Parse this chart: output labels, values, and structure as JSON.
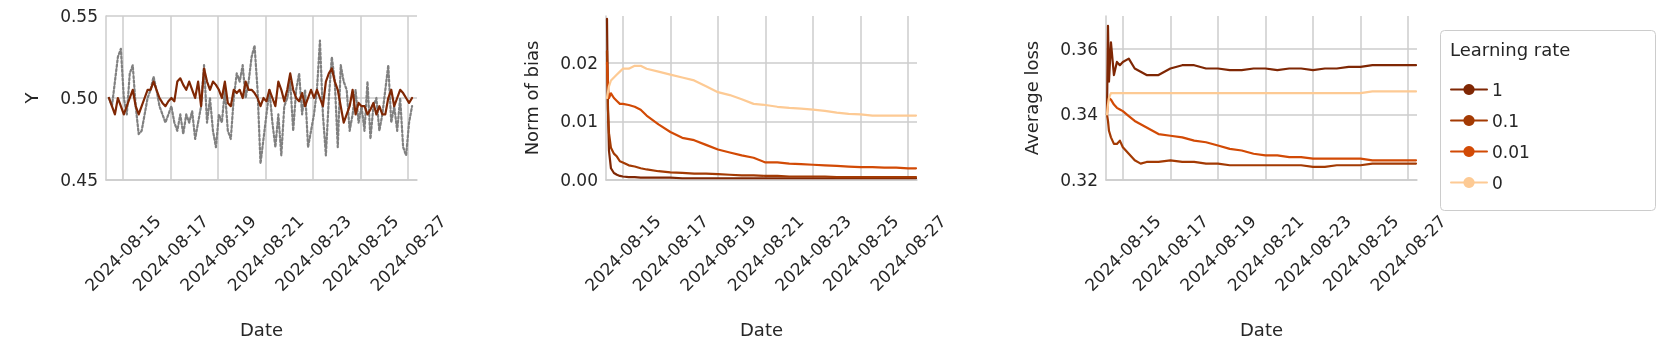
{
  "chart_data": [
    {
      "type": "line",
      "xlabel": "Date",
      "ylabel": "Y",
      "grid": true,
      "x": [
        "2024-08-14T10:00",
        "2024-08-14T13:00",
        "2024-08-14T16:00",
        "2024-08-14T19:00",
        "2024-08-14T22:00",
        "2024-08-15T01:00",
        "2024-08-15T04:00",
        "2024-08-15T07:00",
        "2024-08-15T10:00",
        "2024-08-15T13:00",
        "2024-08-15T16:00",
        "2024-08-15T19:00",
        "2024-08-15T22:00",
        "2024-08-16T01:00",
        "2024-08-16T04:00",
        "2024-08-16T07:00",
        "2024-08-16T10:00",
        "2024-08-16T13:00",
        "2024-08-16T16:00",
        "2024-08-16T19:00",
        "2024-08-16T22:00",
        "2024-08-17T01:00",
        "2024-08-17T04:00",
        "2024-08-17T07:00",
        "2024-08-17T10:00",
        "2024-08-17T13:00",
        "2024-08-17T16:00",
        "2024-08-17T19:00",
        "2024-08-17T22:00",
        "2024-08-18T01:00",
        "2024-08-18T04:00",
        "2024-08-18T07:00",
        "2024-08-18T10:00",
        "2024-08-18T13:00",
        "2024-08-18T16:00",
        "2024-08-18T19:00",
        "2024-08-18T22:00",
        "2024-08-19T01:00",
        "2024-08-19T04:00",
        "2024-08-19T07:00",
        "2024-08-19T10:00",
        "2024-08-19T13:00",
        "2024-08-19T16:00",
        "2024-08-19T19:00",
        "2024-08-19T22:00",
        "2024-08-20T01:00",
        "2024-08-20T04:00",
        "2024-08-20T07:00",
        "2024-08-20T10:00",
        "2024-08-20T13:00",
        "2024-08-20T16:00",
        "2024-08-20T19:00",
        "2024-08-20T22:00",
        "2024-08-21T01:00",
        "2024-08-21T04:00",
        "2024-08-21T07:00",
        "2024-08-21T10:00",
        "2024-08-21T13:00",
        "2024-08-21T16:00",
        "2024-08-21T19:00",
        "2024-08-21T22:00",
        "2024-08-22T01:00",
        "2024-08-22T04:00",
        "2024-08-22T07:00",
        "2024-08-22T10:00",
        "2024-08-22T13:00",
        "2024-08-22T16:00",
        "2024-08-22T19:00",
        "2024-08-22T22:00",
        "2024-08-23T01:00",
        "2024-08-23T04:00",
        "2024-08-23T07:00",
        "2024-08-23T10:00",
        "2024-08-23T13:00",
        "2024-08-23T16:00",
        "2024-08-23T19:00",
        "2024-08-23T22:00",
        "2024-08-24T01:00",
        "2024-08-24T04:00",
        "2024-08-24T07:00",
        "2024-08-24T10:00",
        "2024-08-24T13:00",
        "2024-08-24T16:00",
        "2024-08-24T19:00",
        "2024-08-24T22:00",
        "2024-08-25T01:00",
        "2024-08-25T04:00",
        "2024-08-25T07:00",
        "2024-08-25T10:00",
        "2024-08-25T13:00",
        "2024-08-25T16:00",
        "2024-08-25T19:00",
        "2024-08-25T22:00",
        "2024-08-26T01:00",
        "2024-08-26T04:00",
        "2024-08-26T07:00",
        "2024-08-26T10:00",
        "2024-08-26T13:00",
        "2024-08-26T16:00",
        "2024-08-26T19:00",
        "2024-08-26T22:00",
        "2024-08-27T01:00",
        "2024-08-27T04:00"
      ],
      "xlim": [
        "2024-08-14T07:00",
        "2024-08-27T09:00"
      ],
      "xticks": [
        "2024-08-15",
        "2024-08-17",
        "2024-08-19",
        "2024-08-21",
        "2024-08-23",
        "2024-08-25",
        "2024-08-27"
      ],
      "ylim": [
        0.45,
        0.55
      ],
      "yticks": [
        0.45,
        {
          "value": 0.5,
          "label": "0.50"
        },
        0.55
      ],
      "series": [
        {
          "line_style": "dotted",
          "color": "#808080",
          "values": [
            0.5,
            0.495,
            0.51,
            0.525,
            0.53,
            0.5,
            0.49,
            0.515,
            0.52,
            0.495,
            0.478,
            0.48,
            0.49,
            0.5,
            0.505,
            0.513,
            0.505,
            0.495,
            0.49,
            0.485,
            0.49,
            0.495,
            0.485,
            0.48,
            0.49,
            0.478,
            0.49,
            0.485,
            0.492,
            0.475,
            0.485,
            0.495,
            0.52,
            0.485,
            0.5,
            0.48,
            0.47,
            0.49,
            0.485,
            0.505,
            0.48,
            0.475,
            0.5,
            0.515,
            0.51,
            0.52,
            0.5,
            0.51,
            0.525,
            0.532,
            0.505,
            0.46,
            0.475,
            0.49,
            0.505,
            0.485,
            0.47,
            0.49,
            0.465,
            0.495,
            0.5,
            0.51,
            0.48,
            0.505,
            0.515,
            0.49,
            0.505,
            0.47,
            0.48,
            0.49,
            0.505,
            0.535,
            0.49,
            0.465,
            0.5,
            0.525,
            0.51,
            0.47,
            0.52,
            0.51,
            0.505,
            0.48,
            0.49,
            0.505,
            0.485,
            0.495,
            0.48,
            0.51,
            0.475,
            0.495,
            0.5,
            0.48,
            0.49,
            0.505,
            0.52,
            0.485,
            0.495,
            0.48,
            0.5,
            0.47,
            0.465,
            0.485,
            0.495
          ]
        },
        {
          "color": "#7f2704",
          "values": [
            0.5,
            0.495,
            0.49,
            0.5,
            0.495,
            0.49,
            0.495,
            0.5,
            0.505,
            0.495,
            0.49,
            0.495,
            0.5,
            0.505,
            0.505,
            0.51,
            0.505,
            0.5,
            0.497,
            0.495,
            0.498,
            0.5,
            0.498,
            0.51,
            0.512,
            0.508,
            0.505,
            0.51,
            0.505,
            0.5,
            0.51,
            0.495,
            0.518,
            0.51,
            0.505,
            0.51,
            0.508,
            0.505,
            0.5,
            0.51,
            0.497,
            0.495,
            0.505,
            0.503,
            0.505,
            0.5,
            0.51,
            0.505,
            0.505,
            0.503,
            0.5,
            0.495,
            0.5,
            0.498,
            0.505,
            0.5,
            0.495,
            0.51,
            0.505,
            0.498,
            0.505,
            0.515,
            0.505,
            0.5,
            0.498,
            0.503,
            0.495,
            0.5,
            0.505,
            0.5,
            0.505,
            0.5,
            0.495,
            0.51,
            0.515,
            0.518,
            0.51,
            0.505,
            0.495,
            0.485,
            0.49,
            0.495,
            0.505,
            0.49,
            0.497,
            0.495,
            0.495,
            0.49,
            0.493,
            0.497,
            0.49,
            0.495,
            0.49,
            0.49,
            0.5,
            0.505,
            0.495,
            0.5,
            0.505,
            0.503,
            0.5,
            0.497,
            0.5
          ]
        }
      ]
    },
    {
      "type": "line",
      "xlabel": "Date",
      "ylabel": "Norm of bias",
      "grid": true,
      "x": [
        "2024-08-14T08:00",
        "2024-08-14T09:00",
        "2024-08-14T10:00",
        "2024-08-14T12:00",
        "2024-08-14T15:00",
        "2024-08-14T18:00",
        "2024-08-14T21:00",
        "2024-08-15T00:00",
        "2024-08-15T06:00",
        "2024-08-15T12:00",
        "2024-08-15T18:00",
        "2024-08-16T00:00",
        "2024-08-16T12:00",
        "2024-08-17T00:00",
        "2024-08-17T12:00",
        "2024-08-18T00:00",
        "2024-08-18T12:00",
        "2024-08-19T00:00",
        "2024-08-19T12:00",
        "2024-08-20T00:00",
        "2024-08-20T12:00",
        "2024-08-21T00:00",
        "2024-08-21T12:00",
        "2024-08-22T00:00",
        "2024-08-22T12:00",
        "2024-08-23T00:00",
        "2024-08-23T12:00",
        "2024-08-24T00:00",
        "2024-08-24T12:00",
        "2024-08-25T00:00",
        "2024-08-25T12:00",
        "2024-08-26T00:00",
        "2024-08-26T12:00",
        "2024-08-27T00:00",
        "2024-08-27T08:00"
      ],
      "xlim": [
        "2024-08-14T07:00",
        "2024-08-27T09:00"
      ],
      "xticks": [
        "2024-08-15",
        "2024-08-17",
        "2024-08-19",
        "2024-08-21",
        "2024-08-23",
        "2024-08-25",
        "2024-08-27"
      ],
      "ylim": [
        0,
        0.028
      ],
      "yticks": [
        {
          "value": 0,
          "label": "0.00"
        },
        0.01,
        0.02
      ],
      "series": [
        {
          "color": "#7f2704",
          "values": [
            0.0275,
            0.012,
            0.005,
            0.002,
            0.0012,
            0.0009,
            0.0007,
            0.0006,
            0.0005,
            0.0005,
            0.0004,
            0.0004,
            0.0004,
            0.0004,
            0.0003,
            0.0003,
            0.0003,
            0.0003,
            0.0003,
            0.0003,
            0.0003,
            0.0003,
            0.0003,
            0.0003,
            0.0003,
            0.0003,
            0.0003,
            0.0003,
            0.0003,
            0.0003,
            0.0003,
            0.0003,
            0.0003,
            0.0003,
            0.0003
          ]
        },
        {
          "color": "#a33a03",
          "values": [
            0.022,
            0.012,
            0.008,
            0.0055,
            0.0045,
            0.004,
            0.0032,
            0.003,
            0.0025,
            0.0023,
            0.002,
            0.0018,
            0.0015,
            0.0013,
            0.0012,
            0.0011,
            0.0011,
            0.001,
            0.0009,
            0.0008,
            0.0008,
            0.0007,
            0.0007,
            0.0006,
            0.0006,
            0.0006,
            0.0006,
            0.0005,
            0.0005,
            0.0005,
            0.0005,
            0.0005,
            0.0005,
            0.0005,
            0.0005
          ]
        },
        {
          "color": "#d24a05",
          "values": [
            0.02,
            0.016,
            0.014,
            0.0148,
            0.014,
            0.0135,
            0.013,
            0.013,
            0.0128,
            0.0125,
            0.012,
            0.011,
            0.0095,
            0.0082,
            0.0072,
            0.0068,
            0.006,
            0.0052,
            0.0047,
            0.0042,
            0.0038,
            0.003,
            0.003,
            0.0028,
            0.0027,
            0.0026,
            0.0025,
            0.0024,
            0.0023,
            0.0022,
            0.0022,
            0.0021,
            0.0021,
            0.002,
            0.002
          ]
        },
        {
          "color": "#fdca94",
          "values": [
            0.014,
            0.015,
            0.016,
            0.017,
            0.0175,
            0.018,
            0.0185,
            0.019,
            0.019,
            0.0195,
            0.0195,
            0.019,
            0.0185,
            0.018,
            0.0175,
            0.017,
            0.016,
            0.015,
            0.0145,
            0.0138,
            0.013,
            0.0128,
            0.0125,
            0.0123,
            0.0122,
            0.012,
            0.0118,
            0.0115,
            0.0113,
            0.0112,
            0.011,
            0.011,
            0.011,
            0.011,
            0.011
          ]
        }
      ]
    },
    {
      "type": "line",
      "xlabel": "Date",
      "ylabel": "Average loss",
      "grid": true,
      "legend": "right",
      "legend_title": "Learning rate",
      "x": [
        "2024-08-14T08:00",
        "2024-08-14T09:00",
        "2024-08-14T10:00",
        "2024-08-14T12:00",
        "2024-08-14T15:00",
        "2024-08-14T18:00",
        "2024-08-14T21:00",
        "2024-08-15T00:00",
        "2024-08-15T06:00",
        "2024-08-15T12:00",
        "2024-08-15T18:00",
        "2024-08-16T00:00",
        "2024-08-16T12:00",
        "2024-08-17T00:00",
        "2024-08-17T12:00",
        "2024-08-18T00:00",
        "2024-08-18T12:00",
        "2024-08-19T00:00",
        "2024-08-19T12:00",
        "2024-08-20T00:00",
        "2024-08-20T12:00",
        "2024-08-21T00:00",
        "2024-08-21T12:00",
        "2024-08-22T00:00",
        "2024-08-22T12:00",
        "2024-08-23T00:00",
        "2024-08-23T12:00",
        "2024-08-24T00:00",
        "2024-08-24T12:00",
        "2024-08-25T00:00",
        "2024-08-25T12:00",
        "2024-08-26T00:00",
        "2024-08-26T12:00",
        "2024-08-27T00:00",
        "2024-08-27T08:00"
      ],
      "xlim": [
        "2024-08-14T07:00",
        "2024-08-27T09:00"
      ],
      "xticks": [
        "2024-08-15",
        "2024-08-17",
        "2024-08-19",
        "2024-08-21",
        "2024-08-23",
        "2024-08-25",
        "2024-08-27"
      ],
      "ylim": [
        0.32,
        0.37
      ],
      "yticks": [
        0.32,
        0.34,
        0.36
      ],
      "series": [
        {
          "name": "1",
          "color": "#7f2704",
          "values": [
            0.34,
            0.367,
            0.35,
            0.362,
            0.352,
            0.356,
            0.355,
            0.356,
            0.357,
            0.354,
            0.353,
            0.352,
            0.352,
            0.354,
            0.355,
            0.355,
            0.354,
            0.354,
            0.3535,
            0.3535,
            0.354,
            0.354,
            0.3535,
            0.354,
            0.354,
            0.3535,
            0.354,
            0.354,
            0.3545,
            0.3545,
            0.355,
            0.355,
            0.355,
            0.355,
            0.355
          ]
        },
        {
          "name": "0.1",
          "color": "#a33a03",
          "values": [
            0.34,
            0.338,
            0.335,
            0.333,
            0.331,
            0.331,
            0.332,
            0.33,
            0.328,
            0.326,
            0.325,
            0.3255,
            0.3255,
            0.326,
            0.3255,
            0.3255,
            0.325,
            0.325,
            0.3245,
            0.3245,
            0.3245,
            0.3245,
            0.3245,
            0.3245,
            0.3245,
            0.324,
            0.324,
            0.3245,
            0.3245,
            0.3245,
            0.325,
            0.325,
            0.325,
            0.325,
            0.325
          ]
        },
        {
          "name": "0.01",
          "color": "#d24a05",
          "values": [
            0.34,
            0.344,
            0.345,
            0.3445,
            0.343,
            0.342,
            0.3415,
            0.341,
            0.3395,
            0.338,
            0.337,
            0.336,
            0.334,
            0.3335,
            0.333,
            0.332,
            0.3315,
            0.3305,
            0.3295,
            0.329,
            0.328,
            0.3275,
            0.3275,
            0.327,
            0.327,
            0.3265,
            0.3265,
            0.3265,
            0.3265,
            0.3265,
            0.326,
            0.326,
            0.326,
            0.326,
            0.326
          ]
        },
        {
          "name": "0",
          "color": "#fdca94",
          "values": [
            0.34,
            0.343,
            0.345,
            0.3465,
            0.3465,
            0.3465,
            0.3465,
            0.3465,
            0.3465,
            0.3465,
            0.3465,
            0.3465,
            0.3465,
            0.3465,
            0.3465,
            0.3465,
            0.3465,
            0.3465,
            0.3465,
            0.3465,
            0.3465,
            0.3465,
            0.3465,
            0.3465,
            0.3465,
            0.3465,
            0.3465,
            0.3465,
            0.3465,
            0.3465,
            0.347,
            0.347,
            0.347,
            0.347,
            0.347
          ]
        }
      ]
    }
  ]
}
